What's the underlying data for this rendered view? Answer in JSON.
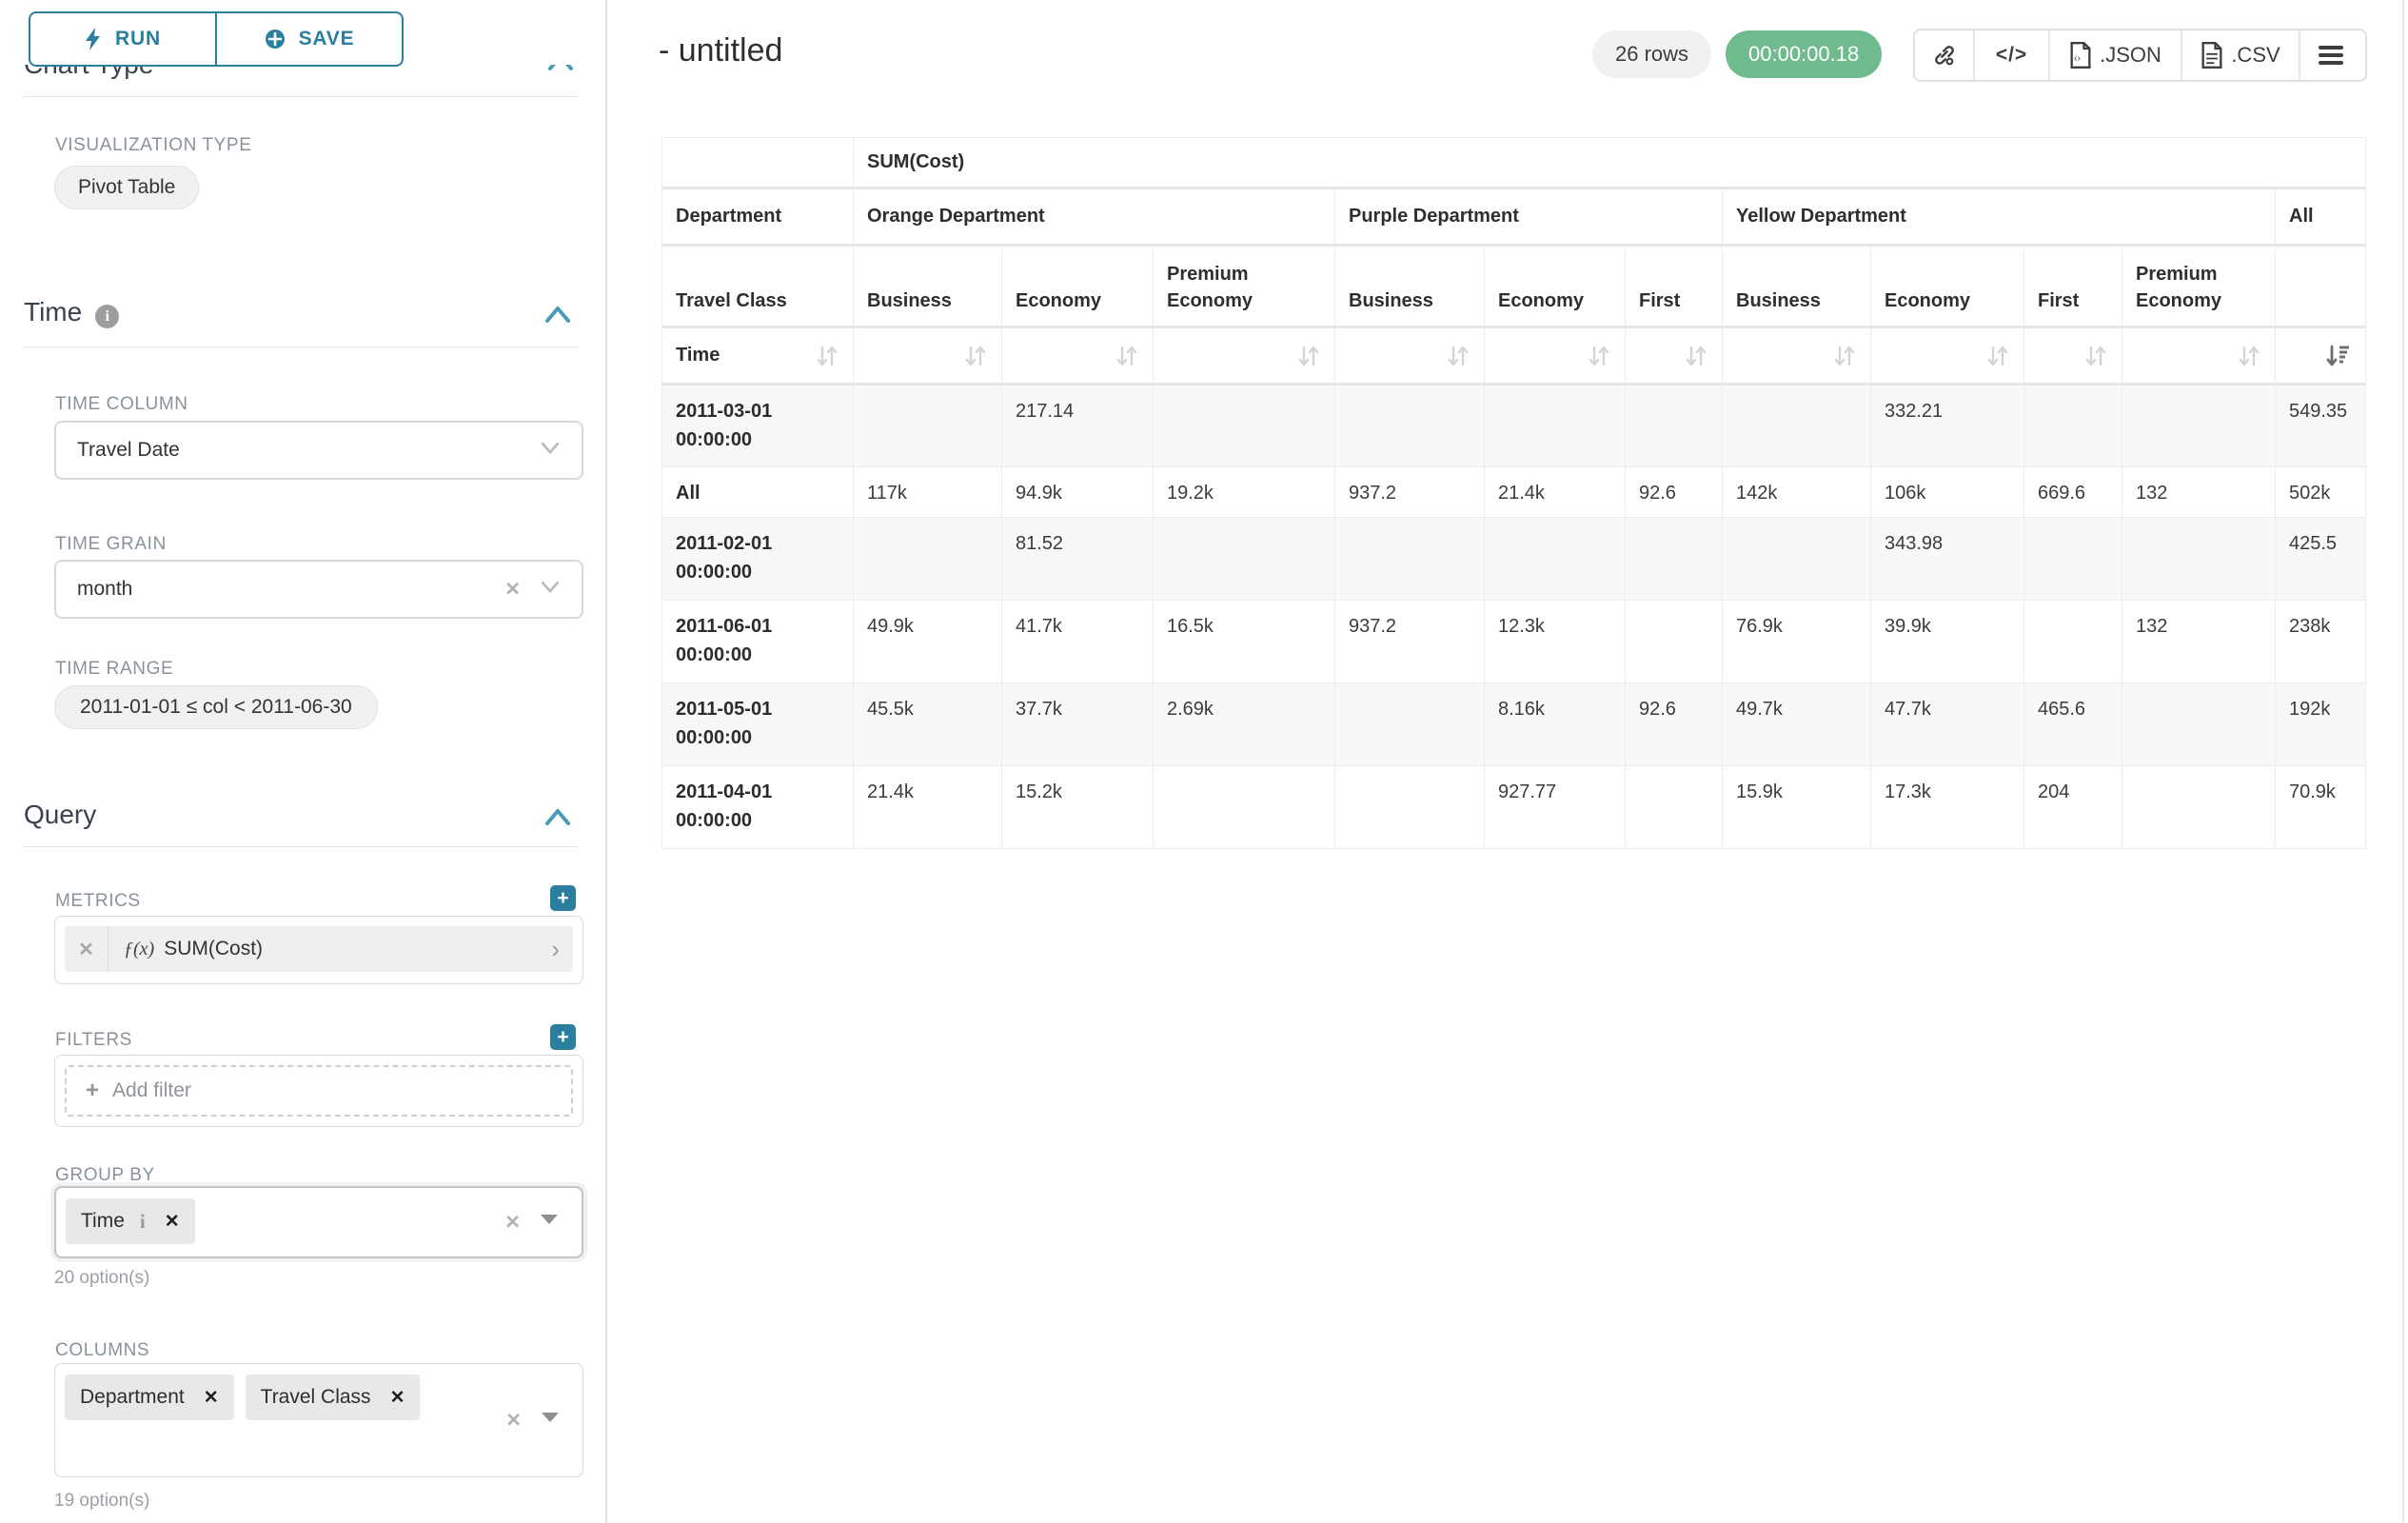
{
  "colors": {
    "teal": "#2b7f9e",
    "green": "#6fbb8d",
    "label_gray": "#8a929b"
  },
  "icons": {
    "plus": "+",
    "close": "✕",
    "chevron_right": "›",
    "info": "i",
    "code": "</>"
  },
  "sidebar": {
    "run_label": "RUN",
    "save_label": "SAVE",
    "chart_type_heading": "Chart Type",
    "viz_label": "VISUALIZATION TYPE",
    "viz_value": "Pivot Table",
    "time_heading": "Time",
    "time_column_label": "TIME COLUMN",
    "time_column_value": "Travel Date",
    "time_grain_label": "TIME GRAIN",
    "time_grain_value": "month",
    "time_range_label": "TIME RANGE",
    "time_range_value": "2011-01-01 ≤ col < 2011-06-30",
    "query_heading": "Query",
    "metrics_label": "METRICS",
    "metric_prefix": "ƒ(x)",
    "metric_value": "SUM(Cost)",
    "filters_label": "FILTERS",
    "add_filter_label": "Add filter",
    "groupby_label": "GROUP BY",
    "groupby_chip": "Time",
    "groupby_helper": "20 option(s)",
    "columns_label": "COLUMNS",
    "columns_chips": [
      "Department",
      "Travel Class"
    ],
    "columns_helper": "19 option(s)"
  },
  "header": {
    "title": "- untitled",
    "rowcount": "26 rows",
    "timer": "00:00:00.18",
    "json_label": ".JSON",
    "csv_label": ".CSV"
  },
  "table": {
    "metric_label": "SUM(Cost)",
    "dept_label": "Department",
    "class_label": "Travel Class",
    "time_label": "Time",
    "groups": [
      {
        "label": "Orange Department",
        "cols": [
          "Business",
          "Economy",
          "Premium Economy"
        ]
      },
      {
        "label": "Purple Department",
        "cols": [
          "Business",
          "Economy",
          "First"
        ]
      },
      {
        "label": "Yellow Department",
        "cols": [
          "Business",
          "Economy",
          "First",
          "Premium Economy"
        ]
      },
      {
        "label": "All",
        "cols": [
          ""
        ]
      }
    ],
    "sorted_desc_col_index": 10,
    "rows": [
      {
        "label": "2011-03-01 00:00:00",
        "striped": true,
        "values": [
          "",
          "217.14",
          "",
          "",
          "",
          "",
          "",
          "332.21",
          "",
          "",
          "549.35"
        ]
      },
      {
        "label": "All",
        "striped": false,
        "values": [
          "117k",
          "94.9k",
          "19.2k",
          "937.2",
          "21.4k",
          "92.6",
          "142k",
          "106k",
          "669.6",
          "132",
          "502k"
        ]
      },
      {
        "label": "2011-02-01 00:00:00",
        "striped": true,
        "values": [
          "",
          "81.52",
          "",
          "",
          "",
          "",
          "",
          "343.98",
          "",
          "",
          "425.5"
        ]
      },
      {
        "label": "2011-06-01 00:00:00",
        "striped": false,
        "values": [
          "49.9k",
          "41.7k",
          "16.5k",
          "937.2",
          "12.3k",
          "",
          "76.9k",
          "39.9k",
          "",
          "132",
          "238k"
        ]
      },
      {
        "label": "2011-05-01 00:00:00",
        "striped": true,
        "values": [
          "45.5k",
          "37.7k",
          "2.69k",
          "",
          "8.16k",
          "92.6",
          "49.7k",
          "47.7k",
          "465.6",
          "",
          "192k"
        ]
      },
      {
        "label": "2011-04-01 00:00:00",
        "striped": false,
        "values": [
          "21.4k",
          "15.2k",
          "",
          "",
          "927.77",
          "",
          "15.9k",
          "17.3k",
          "204",
          "",
          "70.9k"
        ]
      }
    ]
  }
}
